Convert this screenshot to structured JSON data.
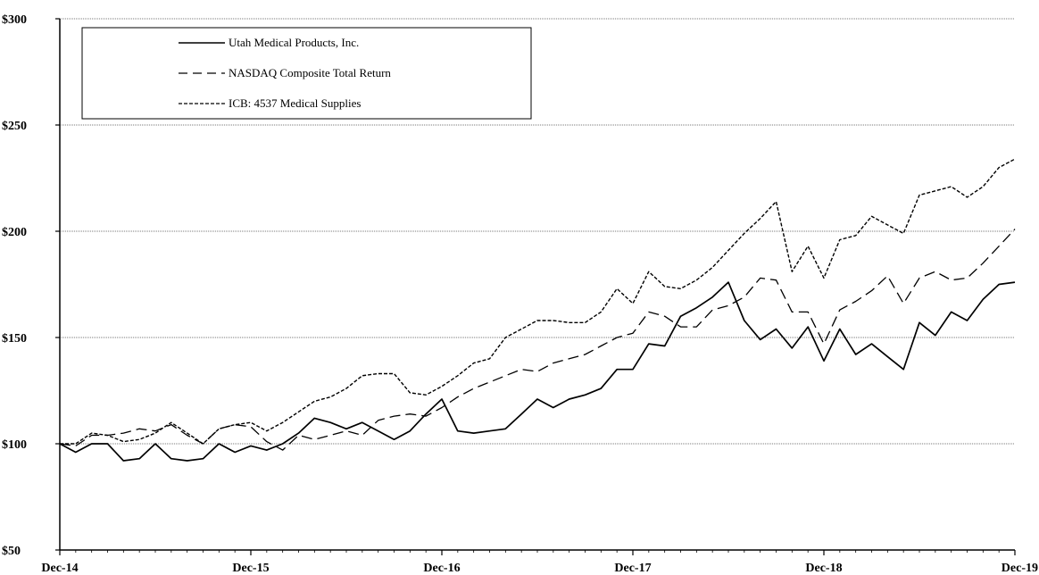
{
  "chart_data": {
    "type": "line",
    "title": "",
    "xlabel": "",
    "ylabel": "",
    "ylim": [
      50,
      300
    ],
    "y_ticks": [
      50,
      100,
      150,
      200,
      250,
      300
    ],
    "y_tick_labels": [
      "$50",
      "$100",
      "$150",
      "$200",
      "$250",
      "$300"
    ],
    "x_ticks": [
      0,
      12,
      24,
      36,
      48,
      60
    ],
    "x_tick_labels": [
      "Dec-14",
      "Dec-15",
      "Dec-16",
      "Dec-17",
      "Dec-18",
      "Dec-19"
    ],
    "x_range": [
      0,
      60
    ],
    "grid": "horizontal dotted",
    "legend_position": "top-left",
    "series": [
      {
        "name": "Utah Medical Products, Inc.",
        "style": "solid",
        "values": [
          100,
          96,
          100,
          100,
          92,
          93,
          100,
          93,
          92,
          93,
          100,
          96,
          99,
          97,
          100,
          105,
          112,
          110,
          107,
          110,
          106,
          102,
          106,
          114,
          121,
          106,
          105,
          106,
          107,
          114,
          121,
          117,
          121,
          123,
          126,
          135,
          135,
          147,
          146,
          160,
          164,
          169,
          176,
          158,
          149,
          154,
          145,
          155,
          139,
          154,
          142,
          147,
          141,
          135,
          157,
          151,
          162,
          158,
          168,
          175,
          176
        ]
      },
      {
        "name": "NASDAQ Composite Total Return",
        "style": "dashed",
        "values": [
          100,
          99,
          104,
          104,
          105,
          107,
          106,
          109,
          104,
          100,
          107,
          109,
          108,
          101,
          97,
          104,
          102,
          104,
          106,
          104,
          111,
          113,
          114,
          113,
          117,
          122,
          126,
          129,
          132,
          135,
          134,
          138,
          140,
          142,
          146,
          150,
          152,
          162,
          160,
          155,
          155,
          163,
          165,
          169,
          178,
          177,
          162,
          162,
          147,
          163,
          167,
          172,
          179,
          166,
          178,
          181,
          177,
          178,
          185,
          193,
          201
        ]
      },
      {
        "name": "ICB: 4537 Medical Supplies",
        "style": "dotted",
        "values": [
          100,
          100,
          105,
          104,
          101,
          102,
          105,
          110,
          105,
          100,
          107,
          109,
          110,
          106,
          110,
          115,
          120,
          122,
          126,
          132,
          133,
          133,
          124,
          123,
          127,
          132,
          138,
          140,
          150,
          154,
          158,
          158,
          157,
          157,
          162,
          173,
          166,
          181,
          174,
          173,
          177,
          183,
          191,
          199,
          206,
          214,
          181,
          193,
          178,
          196,
          198,
          207,
          203,
          199,
          217,
          219,
          221,
          216,
          221,
          230,
          234
        ]
      }
    ]
  }
}
